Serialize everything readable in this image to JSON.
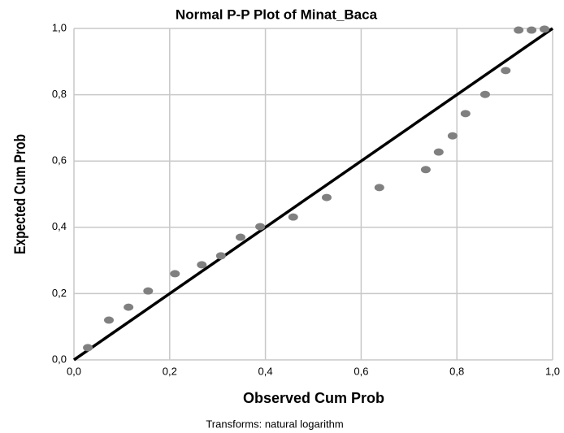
{
  "chart_data": {
    "type": "scatter",
    "title": "Normal P-P Plot of Minat_Baca",
    "x_label": "Observed Cum Prob",
    "y_label": "Expected Cum Prob",
    "footnote": "Transforms: natural logarithm",
    "color": "#808080",
    "grid": true,
    "x": [
      0.029,
      0.073,
      0.114,
      0.155,
      0.211,
      0.267,
      0.307,
      0.348,
      0.389,
      0.458,
      0.528,
      0.638,
      0.735,
      0.762,
      0.791,
      0.818,
      0.859,
      0.902,
      0.929,
      0.956,
      0.983
    ],
    "values": [
      0.037,
      0.12,
      0.159,
      0.208,
      0.26,
      0.287,
      0.314,
      0.37,
      0.402,
      0.431,
      0.49,
      0.52,
      0.574,
      0.627,
      0.676,
      0.743,
      0.801,
      0.873,
      0.995,
      0.995,
      0.998
    ],
    "xlim": [
      0,
      1
    ],
    "ylim": [
      0,
      1
    ],
    "xticks": [
      {
        "value": 0,
        "label": "0,0"
      },
      {
        "value": 0.2,
        "label": "0,2"
      },
      {
        "value": 0.4,
        "label": "0,4"
      },
      {
        "value": 0.6,
        "label": "0,6"
      },
      {
        "value": 0.8,
        "label": "0,8"
      },
      {
        "value": 1,
        "label": "1,0"
      }
    ],
    "yticks": [
      {
        "value": 0,
        "label": "0,0"
      },
      {
        "value": 0.2,
        "label": "0,2"
      },
      {
        "value": 0.4,
        "label": "0,4"
      },
      {
        "value": 0.6,
        "label": "0,6"
      },
      {
        "value": 0.8,
        "label": "0,8"
      },
      {
        "value": 1,
        "label": "1,0"
      }
    ]
  }
}
